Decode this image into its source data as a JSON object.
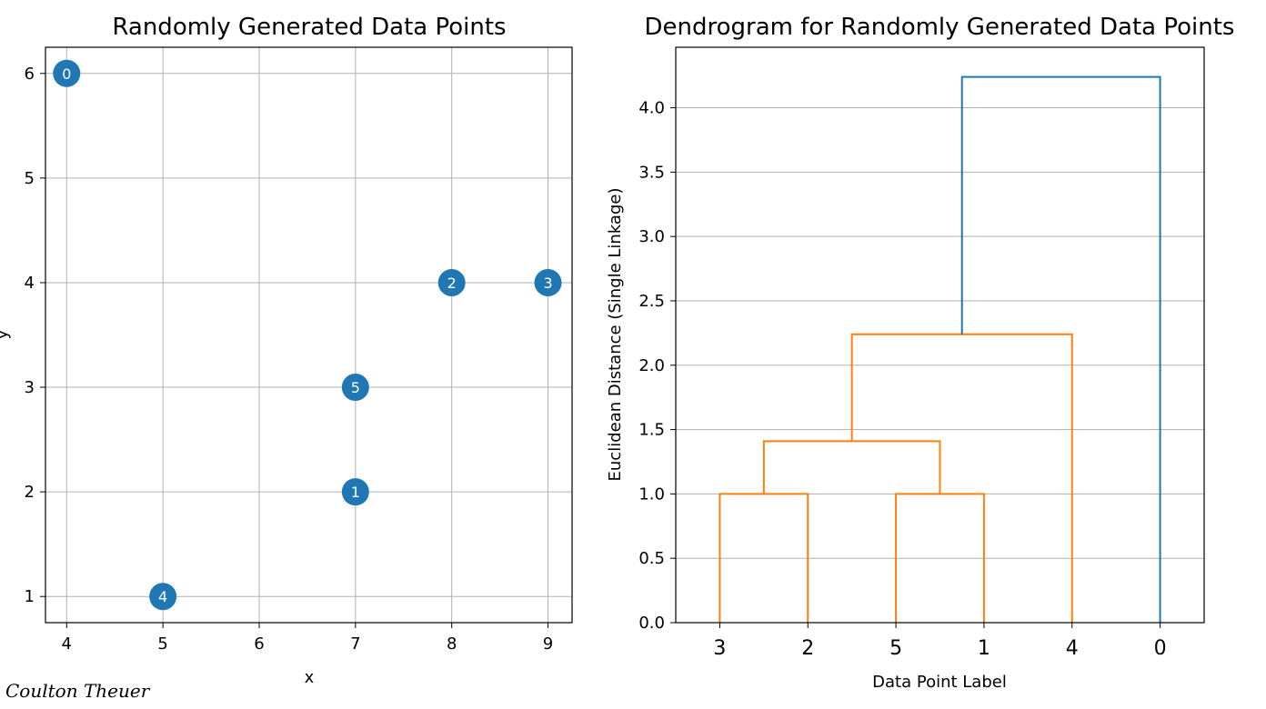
{
  "chart_data": [
    {
      "type": "scatter",
      "title": "Randomly Generated Data Points",
      "xlabel": "x",
      "ylabel": "y",
      "xlim": [
        3.78,
        9.25
      ],
      "ylim": [
        0.75,
        6.25
      ],
      "xticks": [
        4,
        5,
        6,
        7,
        8,
        9
      ],
      "yticks": [
        1,
        2,
        3,
        4,
        5,
        6
      ],
      "grid": true,
      "marker_color": "#1f77b4",
      "points": [
        {
          "label": "0",
          "x": 4,
          "y": 6
        },
        {
          "label": "1",
          "x": 7,
          "y": 2
        },
        {
          "label": "2",
          "x": 8,
          "y": 4
        },
        {
          "label": "3",
          "x": 9,
          "y": 4
        },
        {
          "label": "4",
          "x": 5,
          "y": 1
        },
        {
          "label": "5",
          "x": 7,
          "y": 3
        }
      ]
    },
    {
      "type": "dendrogram",
      "title": "Dendrogram for Randomly Generated Data Points",
      "xlabel": "Data Point Label",
      "ylabel": "Euclidean Distance (Single Linkage)",
      "ylim": [
        0,
        4.47
      ],
      "yticks": [
        "0.0",
        "0.5",
        "1.0",
        "1.5",
        "2.0",
        "2.5",
        "3.0",
        "3.5",
        "4.0"
      ],
      "grid": "y",
      "leaf_order": [
        "3",
        "2",
        "5",
        "1",
        "4",
        "0"
      ],
      "merges": [
        {
          "left": "3",
          "right": "2",
          "height": 1.0,
          "color": "#ff7f0e"
        },
        {
          "left": "5",
          "right": "1",
          "height": 1.0,
          "color": "#ff7f0e"
        },
        {
          "left": "{3,2}",
          "right": "{5,1}",
          "height": 1.41,
          "color": "#ff7f0e"
        },
        {
          "left": "{3,2,5,1}",
          "right": "4",
          "height": 2.24,
          "color": "#ff7f0e"
        },
        {
          "left": "{3,2,5,1,4}",
          "right": "0",
          "height": 4.24,
          "color": "#1f77b4"
        }
      ]
    }
  ],
  "signature": "Coulton Theuer"
}
